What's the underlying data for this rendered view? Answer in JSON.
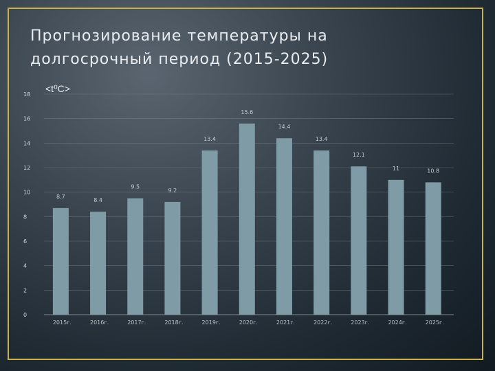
{
  "chart_data": {
    "type": "bar",
    "title": "Прогнозирование температуры на долгосрочный период (2015-2025)",
    "ylabel": "<t⁰C>",
    "xlabel": "",
    "ylim": [
      0,
      18
    ],
    "yticks": [
      0,
      2,
      4,
      6,
      8,
      10,
      12,
      14,
      16,
      18
    ],
    "categories": [
      "2015г.",
      "2016г.",
      "2017г.",
      "2018г.",
      "2019г.",
      "2020г.",
      "2021г.",
      "2022г.",
      "2023г.",
      "2024г.",
      "2025г."
    ],
    "values": [
      8.7,
      8.4,
      9.5,
      9.2,
      13.4,
      15.6,
      14.4,
      13.4,
      12.1,
      11,
      10.8
    ],
    "value_labels": [
      "8.7",
      "8.4",
      "9.5",
      "9.2",
      "13.4",
      "15.6",
      "14.4",
      "13.4",
      "12.1",
      "11",
      "10.8"
    ],
    "grid": true,
    "legend": "none",
    "colors": {
      "bar": "#7f9ba6",
      "grid": "#8a949b",
      "frame": "#c9b24a"
    }
  }
}
